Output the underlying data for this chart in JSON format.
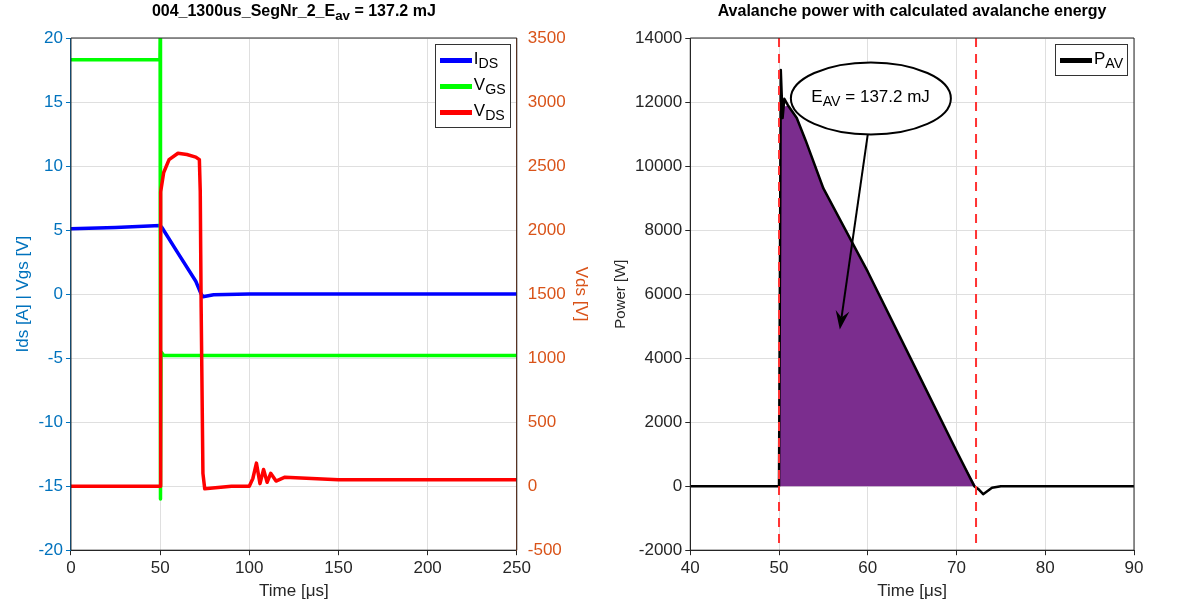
{
  "chart_data": [
    {
      "type": "line",
      "title": "004_1300us_SegNr_2_E$_{av}$ = 137.2 mJ",
      "xlabel": "Time [μs]",
      "ylabel": "Ids [A] | Vgs [V]",
      "y2label": "Vds [V]",
      "series": [
        {
          "name": "I$_{DS}$",
          "color": "#0000ff",
          "x": [
            0,
            25,
            50,
            51,
            60,
            70,
            73,
            74,
            80,
            100,
            150,
            200,
            250
          ],
          "values": [
            5.1,
            5.2,
            5.35,
            5.2,
            3.2,
            1.0,
            0,
            -0.2,
            -0.05,
            0,
            0,
            0,
            0
          ]
        },
        {
          "name": "V$_{GS}$",
          "color": "#00ff00",
          "x": [
            0,
            25,
            49.9,
            50,
            50.2,
            50.5,
            52,
            100,
            150,
            200,
            250
          ],
          "values": [
            18.3,
            18.3,
            18.3,
            20,
            -16,
            -4.5,
            -4.8,
            -4.8,
            -4.8,
            -4.8,
            -4.8
          ]
        },
        {
          "name": "V$_{DS}$",
          "color": "#ff0000",
          "axis": "y2",
          "x": [
            0,
            25,
            49.9,
            50,
            50.3,
            52,
            55,
            60,
            65,
            70,
            72,
            72.5,
            73,
            74,
            75,
            90,
            100,
            102,
            104,
            106,
            108,
            110,
            112,
            115,
            120,
            150,
            200,
            250
          ],
          "values": [
            0,
            0,
            0,
            0,
            2300,
            2450,
            2550,
            2600,
            2590,
            2570,
            2550,
            2300,
            1400,
            100,
            -20,
            0,
            0,
            60,
            180,
            20,
            130,
            30,
            100,
            40,
            70,
            50,
            50,
            50
          ]
        }
      ],
      "xlim": [
        0,
        250
      ],
      "xticks": [
        0,
        50,
        100,
        150,
        200,
        250
      ],
      "ylim": [
        -20,
        20
      ],
      "yticks": [
        -20,
        -15,
        -10,
        -5,
        0,
        5,
        10,
        15,
        20
      ],
      "y2lim": [
        -500,
        3500
      ],
      "y2ticks": [
        -500,
        0,
        500,
        1000,
        1500,
        2000,
        2500,
        3000,
        3500
      ],
      "grid": true,
      "legend": "top right"
    },
    {
      "type": "line",
      "title": "Avalanche power with calculated avalanche energy",
      "xlabel": "Time [μs]",
      "ylabel": "Power [W]",
      "series": [
        {
          "type": "area",
          "color": "#7b2d8e",
          "x": [
            50.1,
            51,
            52,
            53,
            55,
            60,
            65,
            70,
            72.2
          ],
          "values": [
            11800,
            11900,
            11500,
            10800,
            9300,
            6700,
            3900,
            1100,
            0
          ]
        },
        {
          "name": "P$_{AV}$",
          "color": "#000000",
          "x": [
            40,
            45,
            49.9,
            50,
            50.2,
            50.4,
            50.6,
            51,
            52,
            53,
            55,
            60,
            65,
            70,
            72,
            72.5,
            73,
            74,
            75,
            80,
            90
          ],
          "values": [
            0,
            0,
            0,
            0,
            13000,
            11500,
            12100,
            11900,
            11500,
            10800,
            9300,
            6700,
            3900,
            1100,
            0,
            -100,
            -250,
            -50,
            0,
            0,
            0
          ]
        }
      ],
      "xlim": [
        40,
        90
      ],
      "xticks": [
        40,
        50,
        60,
        70,
        80,
        90
      ],
      "ylim": [
        -2000,
        14000
      ],
      "yticks": [
        -2000,
        0,
        2000,
        4000,
        6000,
        8000,
        10000,
        12000,
        14000
      ],
      "grid": true,
      "legend": "top right",
      "ref_lines": [
        {
          "axis": "x",
          "value": 50,
          "color": "#ff3333",
          "line_style": "dashed"
        },
        {
          "axis": "x",
          "value": 72.2,
          "color": "#ff3333",
          "line_style": "dashed"
        }
      ],
      "annotations": [
        "E$_{AV}$ = 137.2 mJ"
      ]
    }
  ]
}
